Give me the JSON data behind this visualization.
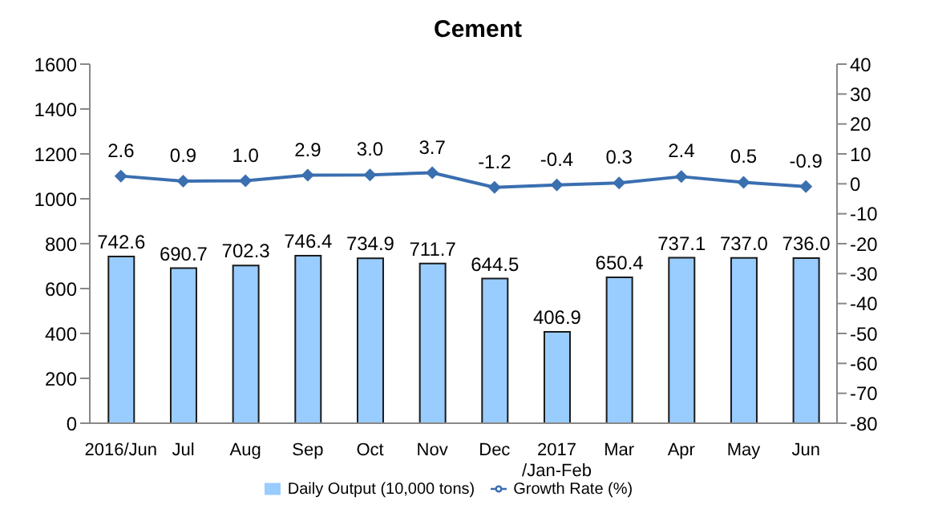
{
  "chart_data": {
    "type": "bar",
    "title": "Cement",
    "categories": [
      "2016/Jun",
      "Jul",
      "Aug",
      "Sep",
      "Oct",
      "Nov",
      "Dec",
      "2017\n/Jan-Feb",
      "Mar",
      "Apr",
      "May",
      "Jun"
    ],
    "series": [
      {
        "name": "Daily Output (10,000 tons)",
        "color": "#99ccff",
        "values": [
          742.6,
          690.7,
          702.3,
          746.4,
          734.9,
          711.7,
          644.5,
          406.9,
          650.4,
          737.1,
          737.0,
          736.0
        ],
        "value_labels": [
          "742.6",
          "690.7",
          "702.3",
          "746.4",
          "734.9",
          "711.7",
          "644.5",
          "406.9",
          "650.4",
          "737.1",
          "737.0",
          "736.0"
        ]
      },
      {
        "name": "Growth Rate (%)",
        "type": "line",
        "axis": "y2",
        "color": "#3a6fb0",
        "values": [
          2.6,
          0.9,
          1.0,
          2.9,
          3.0,
          3.7,
          -1.2,
          -0.4,
          0.3,
          2.4,
          0.5,
          -0.9
        ],
        "value_labels": [
          "2.6",
          "0.9",
          "1.0",
          "2.9",
          "3.0",
          "3.7",
          "-1.2",
          "-0.4",
          "0.3",
          "2.4",
          "0.5",
          "-0.9"
        ]
      }
    ],
    "ylim": [
      0,
      1600
    ],
    "yticks": [
      0,
      200,
      400,
      600,
      800,
      1000,
      1200,
      1400,
      1600
    ],
    "y2lim": [
      -80,
      40
    ],
    "y2ticks": [
      -80,
      -70,
      -60,
      -50,
      -40,
      -30,
      -20,
      -10,
      0,
      10,
      20,
      30,
      40
    ],
    "legend": "bottom",
    "marker": "diamond",
    "line_style": "solid"
  }
}
